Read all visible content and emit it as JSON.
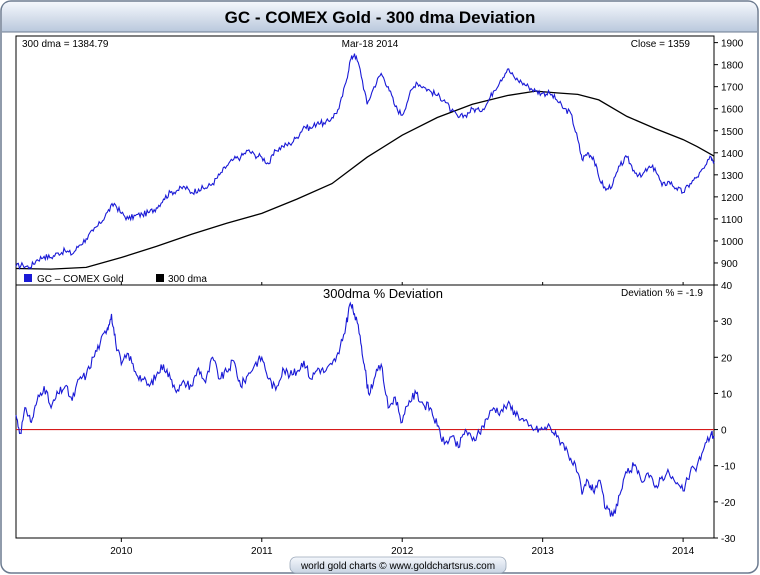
{
  "colors": {
    "frame_border": "#6b7a8f",
    "header_bg_top": "#f4f7fc",
    "header_bg_bottom": "#b9c8dc",
    "price_line": "#1a1ad6",
    "dma_line": "#000000",
    "zero_line": "#d61a1a",
    "deviation_line": "#1a1ad6"
  },
  "chart_data": [
    {
      "type": "line",
      "title": "GC - COMEX Gold - 300 dma Deviation",
      "info_left": "300 dma = 1384.79",
      "info_center": "Mar-18  2014",
      "info_right": "Close = 1359",
      "legend": [
        {
          "label": "GC – COMEX Gold",
          "color": "#1a1ad6"
        },
        {
          "label": "300 dma",
          "color": "#000000"
        }
      ],
      "legend_position": "bottom-left",
      "ylim": [
        800,
        1930
      ],
      "yticks": [
        "900",
        "1000",
        "1100",
        "1200",
        "1300",
        "1400",
        "1500",
        "1600",
        "1700",
        "1800",
        "1900"
      ],
      "xlim": [
        2009.25,
        2014.22
      ],
      "series": [
        {
          "name": "GC – COMEX Gold",
          "x": [
            2009.25,
            2009.3,
            2009.35,
            2009.4,
            2009.45,
            2009.5,
            2009.55,
            2009.6,
            2009.65,
            2009.7,
            2009.75,
            2009.8,
            2009.85,
            2009.9,
            2009.95,
            2010.0,
            2010.05,
            2010.1,
            2010.15,
            2010.2,
            2010.25,
            2010.3,
            2010.35,
            2010.4,
            2010.45,
            2010.5,
            2010.55,
            2010.6,
            2010.65,
            2010.7,
            2010.75,
            2010.8,
            2010.85,
            2010.9,
            2010.95,
            2011.0,
            2011.05,
            2011.1,
            2011.15,
            2011.2,
            2011.25,
            2011.3,
            2011.35,
            2011.4,
            2011.45,
            2011.5,
            2011.55,
            2011.6,
            2011.63,
            2011.66,
            2011.7,
            2011.75,
            2011.8,
            2011.85,
            2011.9,
            2011.95,
            2012.0,
            2012.05,
            2012.1,
            2012.15,
            2012.2,
            2012.25,
            2012.3,
            2012.35,
            2012.4,
            2012.45,
            2012.5,
            2012.55,
            2012.6,
            2012.65,
            2012.7,
            2012.75,
            2012.8,
            2012.85,
            2012.9,
            2012.95,
            2013.0,
            2013.05,
            2013.1,
            2013.15,
            2013.2,
            2013.25,
            2013.28,
            2013.32,
            2013.36,
            2013.4,
            2013.45,
            2013.5,
            2013.55,
            2013.6,
            2013.65,
            2013.7,
            2013.75,
            2013.8,
            2013.85,
            2013.9,
            2013.95,
            2014.0,
            2014.05,
            2014.1,
            2014.15,
            2014.2,
            2014.22
          ],
          "y": [
            885,
            890,
            880,
            915,
            930,
            925,
            945,
            955,
            940,
            980,
            1010,
            1045,
            1080,
            1130,
            1170,
            1125,
            1100,
            1115,
            1120,
            1130,
            1150,
            1190,
            1220,
            1230,
            1245,
            1220,
            1235,
            1240,
            1260,
            1300,
            1340,
            1370,
            1380,
            1410,
            1390,
            1380,
            1350,
            1410,
            1430,
            1440,
            1470,
            1520,
            1510,
            1540,
            1530,
            1560,
            1600,
            1720,
            1820,
            1850,
            1780,
            1620,
            1700,
            1760,
            1700,
            1610,
            1570,
            1660,
            1720,
            1700,
            1680,
            1660,
            1640,
            1590,
            1560,
            1570,
            1600,
            1590,
            1620,
            1680,
            1730,
            1780,
            1740,
            1720,
            1700,
            1680,
            1670,
            1670,
            1640,
            1600,
            1580,
            1460,
            1370,
            1400,
            1380,
            1290,
            1230,
            1260,
            1340,
            1380,
            1320,
            1290,
            1330,
            1330,
            1250,
            1270,
            1240,
            1220,
            1260,
            1290,
            1330,
            1380,
            1359
          ]
        },
        {
          "name": "300 dma",
          "x": [
            2009.25,
            2009.5,
            2009.75,
            2010.0,
            2010.25,
            2010.5,
            2010.75,
            2011.0,
            2011.25,
            2011.5,
            2011.75,
            2012.0,
            2012.25,
            2012.5,
            2012.75,
            2012.95,
            2013.1,
            2013.25,
            2013.4,
            2013.6,
            2013.8,
            2014.0,
            2014.1,
            2014.22
          ],
          "y": [
            875,
            872,
            880,
            925,
            975,
            1030,
            1080,
            1125,
            1190,
            1260,
            1380,
            1480,
            1560,
            1620,
            1660,
            1680,
            1672,
            1665,
            1640,
            1565,
            1510,
            1460,
            1428,
            1385
          ]
        }
      ]
    },
    {
      "type": "line",
      "title": "300dma  %  Deviation",
      "info_right": "Deviation % = -1.9",
      "ylim": [
        -30,
        40
      ],
      "yticks": [
        "-30",
        "-20",
        "-10",
        "0",
        "10",
        "20",
        "30",
        "40"
      ],
      "reference_line": 0,
      "xlim": [
        2009.25,
        2014.22
      ],
      "xticks": [
        {
          "label": "2010",
          "x": 2010.0
        },
        {
          "label": "2011",
          "x": 2011.0
        },
        {
          "label": "2012",
          "x": 2012.0
        },
        {
          "label": "2013",
          "x": 2013.0
        },
        {
          "label": "2014",
          "x": 2014.0
        }
      ],
      "series": [
        {
          "name": "300dma % Deviation",
          "x": [
            2009.25,
            2009.28,
            2009.32,
            2009.36,
            2009.4,
            2009.45,
            2009.5,
            2009.55,
            2009.6,
            2009.65,
            2009.7,
            2009.75,
            2009.8,
            2009.85,
            2009.9,
            2009.93,
            2009.96,
            2010.0,
            2010.05,
            2010.1,
            2010.15,
            2010.2,
            2010.25,
            2010.3,
            2010.35,
            2010.4,
            2010.45,
            2010.5,
            2010.55,
            2010.6,
            2010.65,
            2010.7,
            2010.75,
            2010.8,
            2010.85,
            2010.9,
            2010.95,
            2011.0,
            2011.05,
            2011.1,
            2011.15,
            2011.2,
            2011.25,
            2011.3,
            2011.35,
            2011.4,
            2011.45,
            2011.5,
            2011.55,
            2011.6,
            2011.63,
            2011.66,
            2011.7,
            2011.73,
            2011.76,
            2011.8,
            2011.85,
            2011.9,
            2011.95,
            2012.0,
            2012.05,
            2012.1,
            2012.15,
            2012.2,
            2012.25,
            2012.3,
            2012.35,
            2012.4,
            2012.45,
            2012.5,
            2012.55,
            2012.6,
            2012.65,
            2012.7,
            2012.75,
            2012.8,
            2012.85,
            2012.9,
            2012.95,
            2013.0,
            2013.05,
            2013.1,
            2013.15,
            2013.2,
            2013.25,
            2013.28,
            2013.32,
            2013.36,
            2013.4,
            2013.45,
            2013.5,
            2013.55,
            2013.6,
            2013.65,
            2013.7,
            2013.75,
            2013.8,
            2013.85,
            2013.9,
            2013.95,
            2014.0,
            2014.05,
            2014.1,
            2014.15,
            2014.2,
            2014.22
          ],
          "y": [
            4,
            -1,
            6,
            2,
            8,
            12,
            6,
            10,
            12,
            8,
            14,
            15,
            20,
            24,
            28,
            32,
            24,
            18,
            21,
            16,
            14,
            12,
            15,
            18,
            14,
            11,
            13,
            12,
            17,
            13,
            20,
            14,
            16,
            19,
            12,
            15,
            18,
            20,
            14,
            11,
            17,
            15,
            16,
            19,
            14,
            17,
            16,
            18,
            21,
            29,
            35,
            32,
            26,
            18,
            10,
            14,
            18,
            6,
            9,
            2,
            8,
            10,
            7,
            6,
            1,
            -4,
            -2,
            -5,
            0,
            -3,
            -1,
            3,
            6,
            5,
            7,
            5,
            3,
            1,
            0,
            0,
            1,
            -2,
            -4,
            -8,
            -12,
            -18,
            -14,
            -17,
            -14,
            -22,
            -24,
            -18,
            -12,
            -10,
            -14,
            -12,
            -16,
            -13,
            -12,
            -15,
            -17,
            -12,
            -10,
            -5,
            -1,
            -1.9
          ]
        }
      ]
    }
  ],
  "footer": {
    "credit": "world gold charts © www.goldchartsrus.com"
  }
}
